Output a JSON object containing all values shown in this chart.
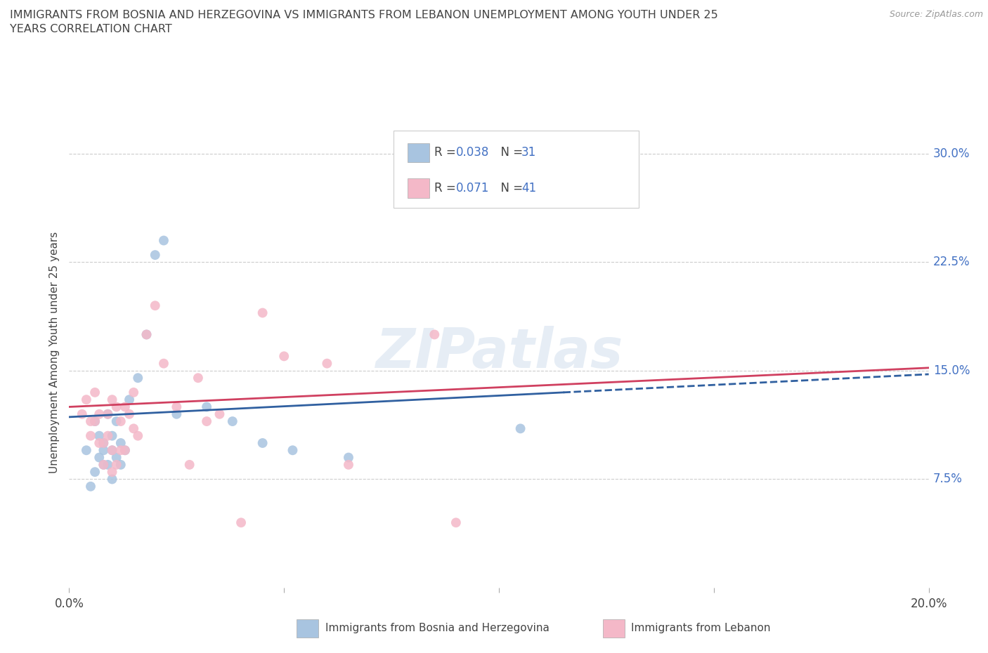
{
  "title": "IMMIGRANTS FROM BOSNIA AND HERZEGOVINA VS IMMIGRANTS FROM LEBANON UNEMPLOYMENT AMONG YOUTH UNDER 25\nYEARS CORRELATION CHART",
  "source_text": "Source: ZipAtlas.com",
  "ylabel": "Unemployment Among Youth under 25 years",
  "xlim": [
    0.0,
    0.2
  ],
  "ylim": [
    0.0,
    0.325
  ],
  "xticks": [
    0.0,
    0.05,
    0.1,
    0.15,
    0.2
  ],
  "xticklabels": [
    "0.0%",
    "",
    "",
    "",
    "20.0%"
  ],
  "ytick_vals": [
    0.075,
    0.15,
    0.225,
    0.3
  ],
  "yticklabels": [
    "7.5%",
    "15.0%",
    "22.5%",
    "30.0%"
  ],
  "watermark": "ZIPatlas",
  "blue_color": "#a8c4e0",
  "pink_color": "#f4b8c8",
  "blue_line_color": "#3060A0",
  "pink_line_color": "#D04060",
  "R_blue": 0.038,
  "N_blue": 31,
  "R_pink": 0.071,
  "N_pink": 41,
  "bosnia_x": [
    0.004,
    0.005,
    0.006,
    0.006,
    0.007,
    0.007,
    0.008,
    0.008,
    0.008,
    0.009,
    0.009,
    0.01,
    0.01,
    0.01,
    0.011,
    0.011,
    0.012,
    0.012,
    0.013,
    0.014,
    0.016,
    0.018,
    0.02,
    0.022,
    0.025,
    0.032,
    0.038,
    0.045,
    0.052,
    0.065,
    0.105
  ],
  "bosnia_y": [
    0.095,
    0.07,
    0.115,
    0.08,
    0.09,
    0.105,
    0.085,
    0.1,
    0.095,
    0.085,
    0.12,
    0.075,
    0.095,
    0.105,
    0.09,
    0.115,
    0.085,
    0.1,
    0.095,
    0.13,
    0.145,
    0.175,
    0.23,
    0.24,
    0.12,
    0.125,
    0.115,
    0.1,
    0.095,
    0.09,
    0.11
  ],
  "lebanon_x": [
    0.003,
    0.004,
    0.005,
    0.005,
    0.006,
    0.006,
    0.007,
    0.007,
    0.008,
    0.008,
    0.009,
    0.009,
    0.01,
    0.01,
    0.01,
    0.011,
    0.011,
    0.012,
    0.012,
    0.013,
    0.013,
    0.014,
    0.015,
    0.015,
    0.016,
    0.018,
    0.02,
    0.022,
    0.025,
    0.028,
    0.03,
    0.032,
    0.035,
    0.04,
    0.045,
    0.05,
    0.06,
    0.065,
    0.085,
    0.09,
    0.11
  ],
  "lebanon_y": [
    0.12,
    0.13,
    0.105,
    0.115,
    0.115,
    0.135,
    0.1,
    0.12,
    0.085,
    0.1,
    0.105,
    0.12,
    0.08,
    0.095,
    0.13,
    0.085,
    0.125,
    0.095,
    0.115,
    0.125,
    0.095,
    0.12,
    0.11,
    0.135,
    0.105,
    0.175,
    0.195,
    0.155,
    0.125,
    0.085,
    0.145,
    0.115,
    0.12,
    0.045,
    0.19,
    0.16,
    0.155,
    0.085,
    0.175,
    0.045,
    0.3
  ],
  "background_color": "#ffffff",
  "grid_color": "#cccccc",
  "label_color": "#4472C4",
  "text_color": "#444444"
}
